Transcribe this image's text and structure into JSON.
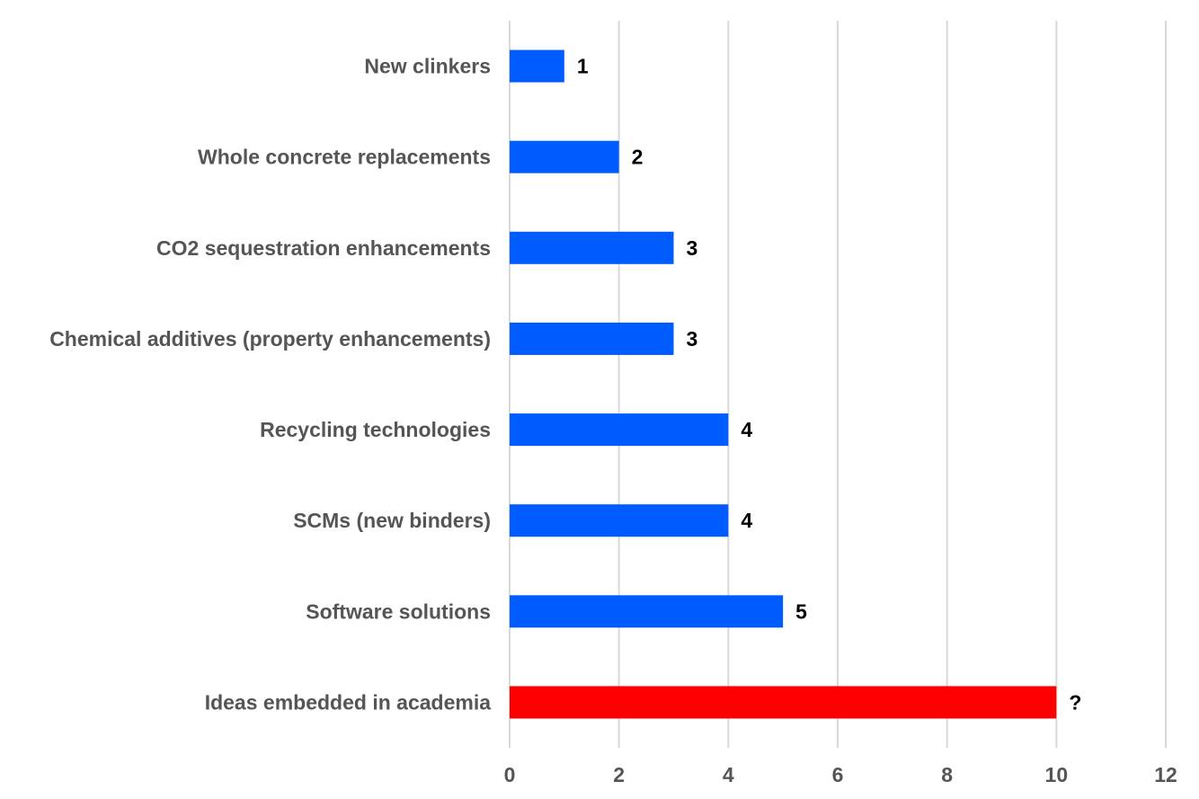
{
  "chart_data": {
    "type": "bar",
    "orientation": "horizontal",
    "categories": [
      "New clinkers",
      "Whole concrete replacements",
      "CO2 sequestration enhancements",
      "Chemical additives (property enhancements)",
      "Recycling technologies",
      "SCMs (new binders)",
      "Software solutions",
      "Ideas embedded in academia"
    ],
    "values": [
      1,
      2,
      3,
      3,
      4,
      4,
      5,
      10
    ],
    "data_labels": [
      "1",
      "2",
      "3",
      "3",
      "4",
      "4",
      "5",
      "?"
    ],
    "bar_colors": [
      "#005cff",
      "#005cff",
      "#005cff",
      "#005cff",
      "#005cff",
      "#005cff",
      "#005cff",
      "#ff0000"
    ],
    "xlim": [
      0,
      12
    ],
    "xticks": [
      "0",
      "2",
      "4",
      "6",
      "8",
      "10",
      "12"
    ],
    "grid": true,
    "legend": "none",
    "title": "",
    "xlabel": "",
    "ylabel": ""
  }
}
